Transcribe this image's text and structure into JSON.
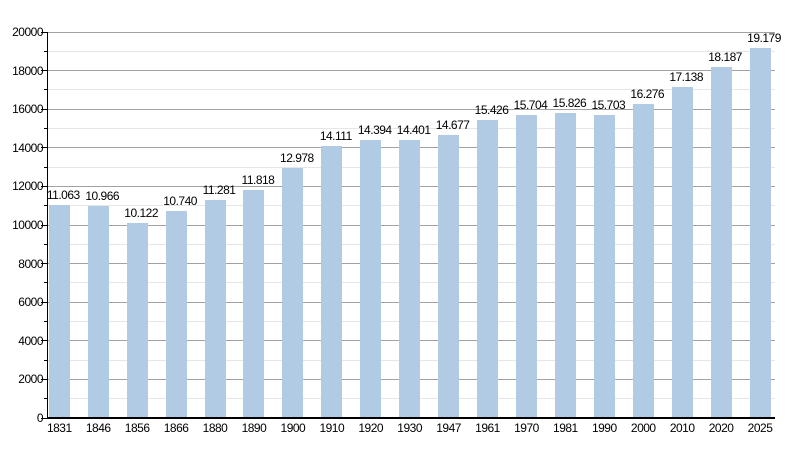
{
  "chart_data": {
    "type": "bar",
    "title": "",
    "xlabel": "",
    "ylabel": "",
    "categories": [
      "1831",
      "1846",
      "1856",
      "1866",
      "1880",
      "1890",
      "1900",
      "1910",
      "1920",
      "1930",
      "1947",
      "1961",
      "1970",
      "1981",
      "1990",
      "2000",
      "2010",
      "2020",
      "2025"
    ],
    "values": [
      11063,
      10966,
      10122,
      10740,
      11281,
      11818,
      12978,
      14111,
      14394,
      14401,
      14677,
      15426,
      15704,
      15826,
      15703,
      16276,
      17138,
      18187,
      19179
    ],
    "value_labels": [
      "11.063",
      "10.966",
      "10.122",
      "10.740",
      "11.281",
      "11.818",
      "12.978",
      "14.111",
      "14.394",
      "14.401",
      "14.677",
      "15.426",
      "15.704",
      "15.826",
      "15.703",
      "16.276",
      "17.138",
      "18.187",
      "19.179"
    ],
    "ylim": [
      0,
      20000
    ],
    "y_major_step": 2000,
    "y_minor_step": 1000,
    "y_tick_labels": [
      "0",
      "2000",
      "4000",
      "6000",
      "8000",
      "10000",
      "12000",
      "14000",
      "16000",
      "18000",
      "20000"
    ],
    "grid": "on",
    "legend": "none",
    "bar_color": "#b1cbe4",
    "major_grid_color": "#a2a2a2",
    "minor_grid_color": "#e6e6e6",
    "axis_color": "#000000",
    "text_color": "#000000"
  }
}
